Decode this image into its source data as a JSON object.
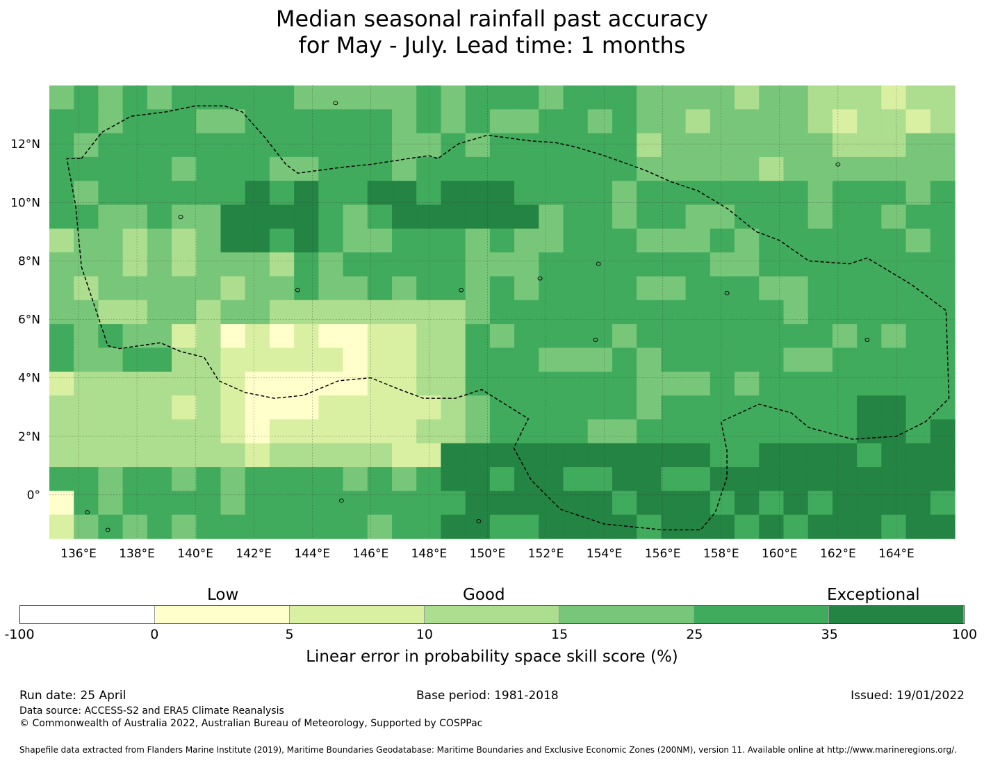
{
  "title": {
    "line1": "Median seasonal rainfall past accuracy",
    "line2": "for May - July. Lead time: 1 months"
  },
  "map": {
    "lon_range": [
      135,
      166
    ],
    "lat_range": [
      -1.5,
      14
    ],
    "x_ticks": [
      "136°E",
      "138°E",
      "140°E",
      "142°E",
      "144°E",
      "146°E",
      "148°E",
      "150°E",
      "152°E",
      "154°E",
      "156°E",
      "158°E",
      "160°E",
      "162°E",
      "164°E"
    ],
    "y_ticks": [
      "12°N",
      "10°N",
      "8°N",
      "6°N",
      "4°N",
      "2°N",
      "0°"
    ],
    "grid": true,
    "boundary_style": "dashed"
  },
  "colorbar": {
    "categories": [
      "Low",
      "Good",
      "Exceptional"
    ],
    "tick_labels": [
      "-100",
      "0",
      "5",
      "10",
      "15",
      "25",
      "35",
      "100"
    ],
    "colors": [
      "#ffffff",
      "#ffffcc",
      "#d9f0a3",
      "#addd8e",
      "#78c679",
      "#41ab5d",
      "#238443"
    ],
    "label": "Linear error in probability space skill score (%)"
  },
  "footer": {
    "run_date": "Run date: 25 April",
    "base_period": "Base period: 1981-2018",
    "issued": "Issued: 19/01/2022",
    "data_source": "Data source: ACCESS-S2 and ERA5 Climate Reanalysis",
    "copyright": "© Commonwealth of Australia 2022, Australian Bureau of Meteorology, Supported by COSPPac",
    "shapefile": "Shapefile data extracted from Flanders Marine Institute (2019), Maritime Boundaries Geodatabase: Maritime Boundaries and Exclusive Economic Zones (200NM), version 11. Available online at http://www.marineregions.org/."
  }
}
